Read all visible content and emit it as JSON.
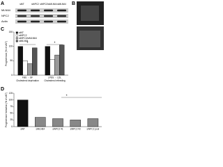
{
  "panel_a": {
    "letter": "A",
    "columns": [
      "siNT",
      "siNPC2",
      "siNPC2/siMLN64",
      "siMLN64"
    ],
    "rows": [
      "MLN64",
      "NPC2",
      "Actin"
    ]
  },
  "panel_b": {
    "letter": "B"
  },
  "chart_data": [
    {
      "type": "bar",
      "panel": "C",
      "y_label": "Progesterone (% of siNT)",
      "categories": [
        "FBS → SF",
        "LPDS → LDL"
      ],
      "sublabels": [
        "Cholesterol deprivation",
        "Cholesterol refeeding"
      ],
      "series": [
        {
          "name": "siNT",
          "color": "#111111",
          "values": [
            100,
            100
          ]
        },
        {
          "name": "siNPC2",
          "color": "#ffffff",
          "values": [
            50,
            55
          ]
        },
        {
          "name": "siNPC2/siMLN64",
          "color": "#999999",
          "values": [
            40,
            70
          ]
        },
        {
          "name": "siMLN64",
          "color": "#555555",
          "values": [
            95,
            105
          ]
        }
      ],
      "ylim": [
        0,
        150
      ],
      "yticks": [
        0,
        50,
        100,
        150
      ],
      "annotations": [
        "*",
        "*"
      ]
    },
    {
      "type": "bar",
      "panel": "D",
      "y_label": "Progesterone formation (% of siNT)",
      "categories": [
        "siNT",
        "siMLN64",
        "siNPC2 #1",
        "siNPC2 #2",
        "siNPC2 pool"
      ],
      "values": [
        100,
        35,
        30,
        25,
        30
      ],
      "colors": [
        "#111111",
        "#888888",
        "#888888",
        "#888888",
        "#888888"
      ],
      "ylim": [
        0,
        125
      ],
      "yticks": [
        0,
        25,
        50,
        75,
        100,
        125
      ],
      "annotations": [
        "*"
      ]
    }
  ]
}
